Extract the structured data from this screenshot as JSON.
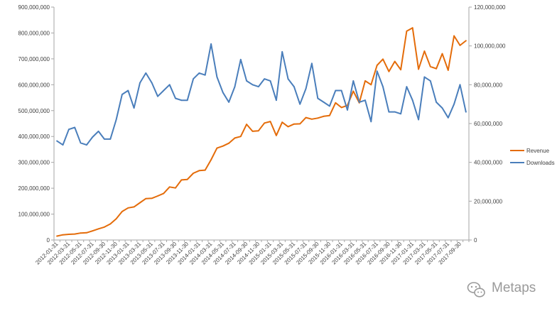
{
  "chart_data": {
    "type": "line",
    "x": [
      "2012-01-31",
      "2012-02-29",
      "2012-03-31",
      "2012-04-30",
      "2012-05-31",
      "2012-06-30",
      "2012-07-31",
      "2012-08-31",
      "2012-09-30",
      "2012-10-31",
      "2012-11-30",
      "2012-12-31",
      "2013-01-31",
      "2013-02-28",
      "2013-03-31",
      "2013-04-30",
      "2013-05-31",
      "2013-06-30",
      "2013-07-31",
      "2013-08-31",
      "2013-09-30",
      "2013-10-31",
      "2013-11-30",
      "2013-12-31",
      "2014-01-31",
      "2014-02-28",
      "2014-03-31",
      "2014-04-30",
      "2014-05-31",
      "2014-06-30",
      "2014-07-31",
      "2014-08-31",
      "2014-09-30",
      "2014-10-31",
      "2014-11-30",
      "2014-12-31",
      "2015-01-31",
      "2015-02-28",
      "2015-03-31",
      "2015-04-30",
      "2015-05-31",
      "2015-06-30",
      "2015-07-31",
      "2015-08-31",
      "2015-09-30",
      "2015-10-31",
      "2015-11-30",
      "2015-12-31",
      "2016-01-31",
      "2016-02-29",
      "2016-03-31",
      "2016-04-30",
      "2016-05-31",
      "2016-06-30",
      "2016-07-31",
      "2016-08-31",
      "2016-09-30",
      "2016-10-31",
      "2016-11-30",
      "2016-12-31",
      "2017-01-31",
      "2017-02-28",
      "2017-03-31",
      "2017-04-30",
      "2017-05-31",
      "2017-06-30",
      "2017-07-31",
      "2017-08-31",
      "2017-09-30",
      "2017-10-31"
    ],
    "xtick_labels": [
      "2012-01-31",
      "2012-03-31",
      "2012-05-31",
      "2012-07-31",
      "2012-09-30",
      "2012-11-30",
      "2013-01-31",
      "2013-03-31",
      "2013-05-31",
      "2013-07-31",
      "2013-09-30",
      "2013-11-30",
      "2014-01-31",
      "2014-03-31",
      "2014-05-31",
      "2014-07-31",
      "2014-09-30",
      "2014-11-30",
      "2015-01-31",
      "2015-03-31",
      "2015-05-31",
      "2015-07-31",
      "2015-09-30",
      "2015-11-30",
      "2016-01-31",
      "2016-03-31",
      "2016-05-31",
      "2016-07-31",
      "2016-09-30",
      "2016-11-30",
      "2017-01-31",
      "2017-03-31",
      "2017-05-31",
      "2017-07-31",
      "2017-09-30"
    ],
    "series": [
      {
        "name": "Revenue",
        "axis": "left",
        "color": "#E46C0A",
        "values": [
          15000000,
          20000000,
          22000000,
          23000000,
          27000000,
          28000000,
          35000000,
          43000000,
          50000000,
          62000000,
          82000000,
          110000000,
          124000000,
          128000000,
          144000000,
          160000000,
          161000000,
          170000000,
          180000000,
          205000000,
          201000000,
          232000000,
          234000000,
          258000000,
          268000000,
          270000000,
          310000000,
          355000000,
          363000000,
          374000000,
          394000000,
          400000000,
          447000000,
          420000000,
          422000000,
          452000000,
          458000000,
          404000000,
          455000000,
          438000000,
          448000000,
          449000000,
          473000000,
          467000000,
          471000000,
          478000000,
          481000000,
          530000000,
          512000000,
          520000000,
          575000000,
          530000000,
          615000000,
          600000000,
          675000000,
          699000000,
          651000000,
          690000000,
          658000000,
          807000000,
          820000000,
          660000000,
          730000000,
          670000000,
          662000000,
          720000000,
          656000000,
          789000000,
          752000000,
          770000000
        ]
      },
      {
        "name": "Downloads",
        "axis": "right",
        "color": "#4A7EBB",
        "values": [
          51000000,
          49000000,
          57000000,
          58000000,
          50000000,
          49000000,
          53000000,
          56000000,
          52000000,
          52000000,
          62000000,
          75000000,
          77000000,
          68000000,
          81000000,
          86000000,
          81000000,
          74000000,
          77000000,
          80000000,
          73000000,
          72000000,
          72000000,
          83000000,
          86000000,
          85000000,
          101000000,
          84000000,
          76000000,
          71000000,
          79000000,
          93000000,
          82000000,
          80000000,
          79000000,
          83000000,
          82000000,
          72000000,
          97000000,
          83000000,
          79000000,
          70000000,
          78000000,
          91000000,
          73000000,
          71000000,
          69000000,
          77000000,
          77000000,
          67000000,
          82000000,
          71000000,
          72000000,
          61000000,
          87000000,
          79000000,
          66000000,
          66000000,
          65000000,
          79000000,
          72000000,
          62000000,
          84000000,
          82000000,
          71000000,
          68000000,
          63000000,
          70000000,
          80000000,
          66000000
        ]
      }
    ],
    "y_left": {
      "min": 0,
      "max": 900000000,
      "step": 100000000,
      "tick_labels": [
        "0",
        "100,000,000",
        "200,000,000",
        "300,000,000",
        "400,000,000",
        "500,000,000",
        "600,000,000",
        "700,000,000",
        "800,000,000",
        "900,000,000"
      ]
    },
    "y_right": {
      "min": 0,
      "max": 120000000,
      "step": 20000000,
      "tick_labels": [
        "0",
        "20,000,000",
        "40,000,000",
        "60,000,000",
        "80,000,000",
        "100,000,000",
        "120,000,000"
      ]
    },
    "grid": false,
    "legend_position": "right",
    "legend": [
      "Revenue",
      "Downloads"
    ],
    "title": "",
    "xlabel": "",
    "ylabel": ""
  },
  "watermark": {
    "text": "Metaps",
    "icon": "wechat-icon"
  },
  "colors": {
    "axis": "#a6a6a6",
    "tick_text": "#404040",
    "background": "#ffffff"
  }
}
